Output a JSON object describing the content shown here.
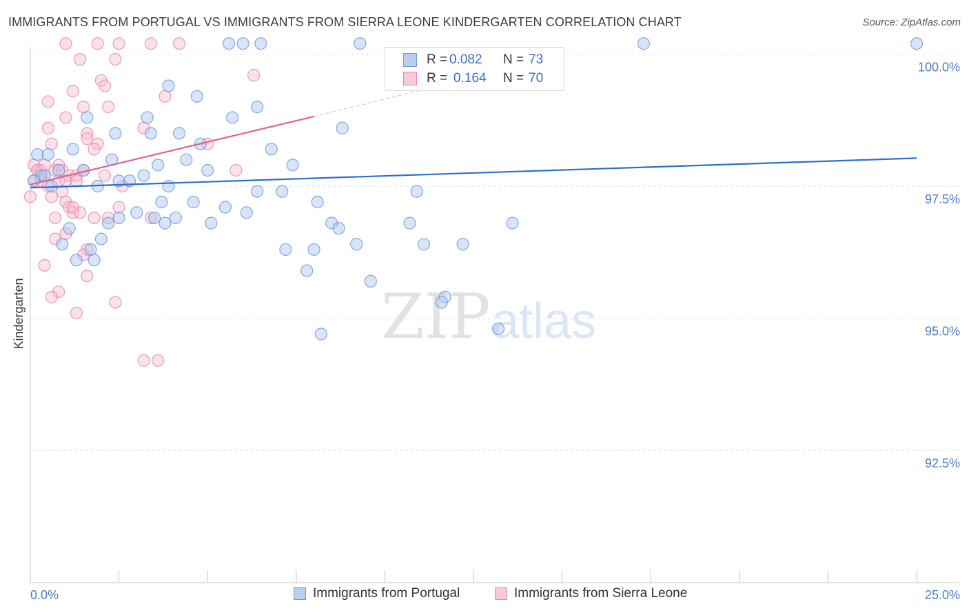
{
  "title": "IMMIGRANTS FROM PORTUGAL VS IMMIGRANTS FROM SIERRA LEONE KINDERGARTEN CORRELATION CHART",
  "source": "Source: ZipAtlas.com",
  "watermark": {
    "zip": "ZIP",
    "atlas": "atlas"
  },
  "colors": {
    "blue_fill": "#a9c6f0",
    "blue_stroke": "#6d9ad8",
    "blue_line": "#2a6fcf",
    "pink_fill": "#f6bcd0",
    "pink_stroke": "#e88aac",
    "pink_line": "#e0608e",
    "axis_text": "#4a7cc7"
  },
  "legend_box": {
    "rows": [
      {
        "r_label": "R =",
        "r_value": "0.082",
        "n_label": "N =",
        "n_value": "73"
      },
      {
        "r_label": "R =",
        "r_value": "0.164",
        "n_label": "N =",
        "n_value": "70"
      }
    ]
  },
  "legend_bottom": {
    "items": [
      "Immigrants from Portugal",
      "Immigrants from Sierra Leone"
    ]
  },
  "chart_data": {
    "type": "scatter",
    "ylabel": "Kindergarten",
    "xlabel": "",
    "xlim": [
      0,
      25
    ],
    "ylim": [
      90.0,
      100.3
    ],
    "x_tick_labels": [
      "0.0%",
      "25.0%"
    ],
    "y_ticks": [
      {
        "value": 100.0,
        "label": "100.0%"
      },
      {
        "value": 97.5,
        "label": "97.5%"
      },
      {
        "value": 95.0,
        "label": "95.0%"
      },
      {
        "value": 92.5,
        "label": "92.5%"
      }
    ],
    "grid": "horizontal dashed",
    "series": [
      {
        "name": "Immigrants from Portugal",
        "color": "blue",
        "trend": {
          "x": [
            0,
            25
          ],
          "y": [
            97.47,
            98.03
          ]
        },
        "points": [
          [
            5.6,
            100.2
          ],
          [
            6.0,
            100.2
          ],
          [
            6.5,
            100.2
          ],
          [
            9.3,
            100.2
          ],
          [
            17.3,
            100.2
          ],
          [
            25.0,
            100.2
          ],
          [
            3.9,
            99.4
          ],
          [
            4.7,
            99.2
          ],
          [
            6.4,
            99.0
          ],
          [
            1.6,
            98.8
          ],
          [
            3.3,
            98.8
          ],
          [
            5.7,
            98.8
          ],
          [
            8.8,
            98.6
          ],
          [
            3.4,
            98.5
          ],
          [
            4.2,
            98.5
          ],
          [
            4.8,
            98.3
          ],
          [
            0.2,
            98.1
          ],
          [
            0.5,
            98.1
          ],
          [
            1.2,
            98.2
          ],
          [
            2.3,
            98.0
          ],
          [
            4.4,
            98.0
          ],
          [
            6.8,
            98.2
          ],
          [
            7.4,
            97.9
          ],
          [
            3.6,
            97.9
          ],
          [
            0.3,
            97.7
          ],
          [
            0.8,
            97.8
          ],
          [
            1.5,
            97.8
          ],
          [
            0.6,
            97.5
          ],
          [
            1.9,
            97.5
          ],
          [
            2.5,
            97.6
          ],
          [
            2.8,
            97.6
          ],
          [
            3.2,
            97.7
          ],
          [
            3.9,
            97.5
          ],
          [
            7.1,
            97.4
          ],
          [
            0.1,
            97.6
          ],
          [
            0.4,
            97.7
          ],
          [
            4.6,
            97.2
          ],
          [
            8.1,
            97.2
          ],
          [
            6.1,
            97.0
          ],
          [
            3.0,
            97.0
          ],
          [
            3.5,
            96.9
          ],
          [
            2.5,
            96.9
          ],
          [
            2.2,
            96.8
          ],
          [
            3.8,
            96.8
          ],
          [
            4.1,
            96.9
          ],
          [
            5.1,
            96.8
          ],
          [
            8.5,
            96.8
          ],
          [
            8.7,
            96.7
          ],
          [
            10.7,
            96.8
          ],
          [
            13.6,
            96.8
          ],
          [
            1.1,
            96.7
          ],
          [
            9.2,
            96.4
          ],
          [
            7.2,
            96.3
          ],
          [
            8.0,
            96.3
          ],
          [
            11.1,
            96.4
          ],
          [
            12.2,
            96.4
          ],
          [
            0.9,
            96.4
          ],
          [
            2.0,
            96.5
          ],
          [
            1.7,
            96.3
          ],
          [
            1.3,
            96.1
          ],
          [
            7.8,
            95.9
          ],
          [
            9.6,
            95.7
          ],
          [
            11.7,
            95.4
          ],
          [
            11.6,
            95.3
          ],
          [
            13.2,
            94.8
          ],
          [
            8.2,
            94.7
          ],
          [
            1.8,
            96.1
          ],
          [
            3.7,
            97.2
          ],
          [
            5.5,
            97.1
          ],
          [
            10.9,
            97.4
          ],
          [
            2.4,
            98.5
          ],
          [
            5.0,
            97.8
          ],
          [
            6.4,
            97.4
          ]
        ]
      },
      {
        "name": "Immigrants from Sierra Leone",
        "color": "pink",
        "trend": {
          "x": [
            0,
            8.0
          ],
          "y": [
            97.53,
            98.82
          ],
          "dashed_to": {
            "x": 15.0,
            "y": 99.97
          }
        },
        "points": [
          [
            1.0,
            100.2
          ],
          [
            1.9,
            100.2
          ],
          [
            2.5,
            100.2
          ],
          [
            3.4,
            100.2
          ],
          [
            4.2,
            100.2
          ],
          [
            2.4,
            99.9
          ],
          [
            1.4,
            99.9
          ],
          [
            6.3,
            99.6
          ],
          [
            2.0,
            99.5
          ],
          [
            2.1,
            99.4
          ],
          [
            1.2,
            99.3
          ],
          [
            3.8,
            99.2
          ],
          [
            0.5,
            99.1
          ],
          [
            1.5,
            99.0
          ],
          [
            2.2,
            99.0
          ],
          [
            1.0,
            98.8
          ],
          [
            0.5,
            98.6
          ],
          [
            3.2,
            98.6
          ],
          [
            1.6,
            98.5
          ],
          [
            1.6,
            98.4
          ],
          [
            1.9,
            98.3
          ],
          [
            0.6,
            98.3
          ],
          [
            1.8,
            98.2
          ],
          [
            5.0,
            98.3
          ],
          [
            0.1,
            97.9
          ],
          [
            0.2,
            97.8
          ],
          [
            0.3,
            97.8
          ],
          [
            0.4,
            97.7
          ],
          [
            0.7,
            97.8
          ],
          [
            0.9,
            97.8
          ],
          [
            1.1,
            97.7
          ],
          [
            1.3,
            97.7
          ],
          [
            1.5,
            97.8
          ],
          [
            2.1,
            97.7
          ],
          [
            0.1,
            97.6
          ],
          [
            0.3,
            97.6
          ],
          [
            0.5,
            97.5
          ],
          [
            0.8,
            97.6
          ],
          [
            1.0,
            97.6
          ],
          [
            2.6,
            97.5
          ],
          [
            5.8,
            97.8
          ],
          [
            0.0,
            97.3
          ],
          [
            0.6,
            97.3
          ],
          [
            0.9,
            97.4
          ],
          [
            1.0,
            97.2
          ],
          [
            1.1,
            97.1
          ],
          [
            1.2,
            97.0
          ],
          [
            1.4,
            97.0
          ],
          [
            2.5,
            97.1
          ],
          [
            1.2,
            97.1
          ],
          [
            0.7,
            96.9
          ],
          [
            1.8,
            96.9
          ],
          [
            2.2,
            96.9
          ],
          [
            3.4,
            96.9
          ],
          [
            1.0,
            96.6
          ],
          [
            0.7,
            96.5
          ],
          [
            1.6,
            96.3
          ],
          [
            1.5,
            96.2
          ],
          [
            0.4,
            96.0
          ],
          [
            1.6,
            95.8
          ],
          [
            0.8,
            95.5
          ],
          [
            0.6,
            95.4
          ],
          [
            2.4,
            95.3
          ],
          [
            1.3,
            95.1
          ],
          [
            3.2,
            94.2
          ],
          [
            3.6,
            94.2
          ],
          [
            0.2,
            97.8
          ],
          [
            0.4,
            97.9
          ],
          [
            0.8,
            97.9
          ],
          [
            1.3,
            97.6
          ]
        ]
      }
    ]
  }
}
